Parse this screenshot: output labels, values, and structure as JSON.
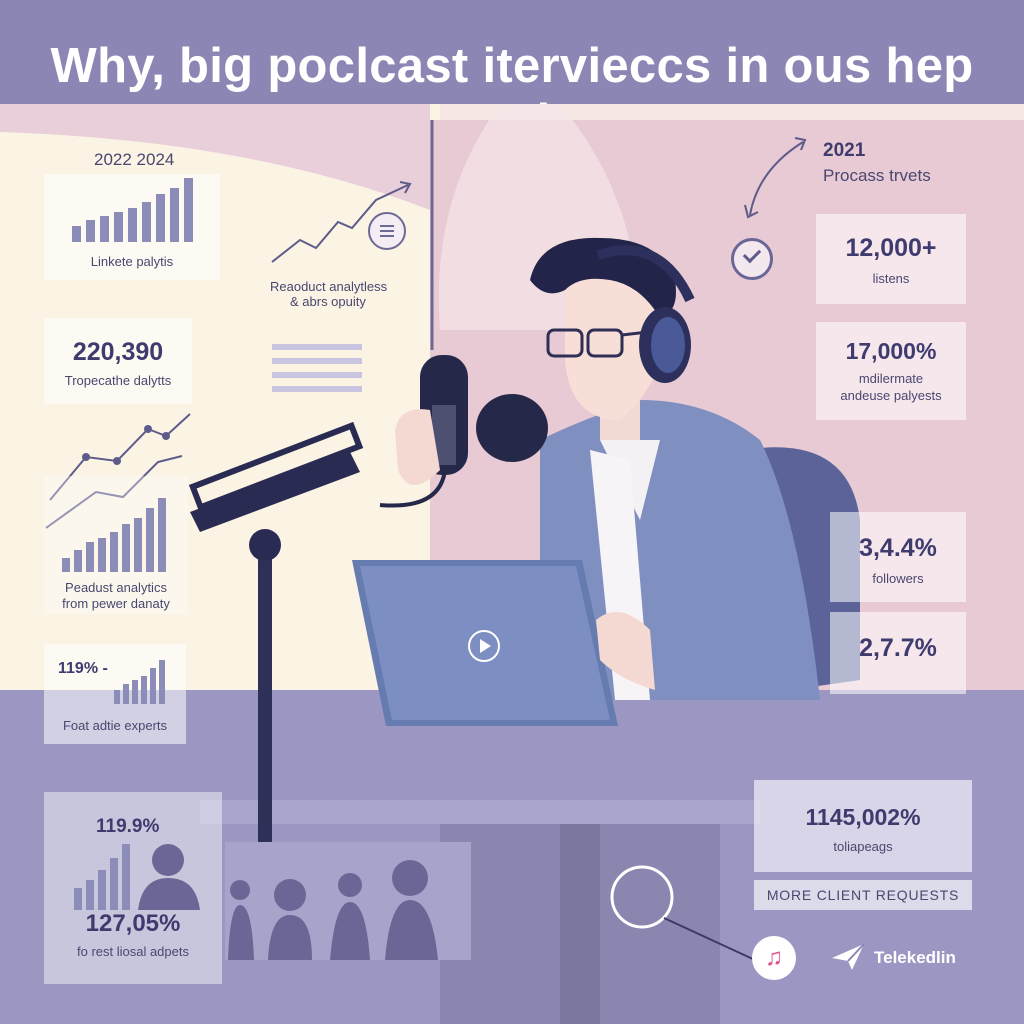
{
  "header": {
    "title": "Why, big poclcast itervieccs in ous hep tool."
  },
  "left_panel": {
    "years": "2022 2024",
    "chart_card_1_label": "Linkete palytis",
    "stat_1_value": "220,390",
    "stat_1_label": "Tropecathe dalytts",
    "analytics_line_1": "Reaoduct analytless",
    "analytics_line_2": "& abrs opuity",
    "chart_card_2_label_1": "Peadust analytics",
    "chart_card_2_label_2": "from pewer danaty",
    "small_stat_value": "119% -",
    "small_stat_label": "Foat adtie experts",
    "bottom_stat_1_value": "119.9%",
    "bottom_stat_2_value": "127,05%",
    "bottom_stat_2_label": "fo rest liosal adpets"
  },
  "right_panel": {
    "year": "2021",
    "subtitle": "Procass trvets",
    "stats": [
      {
        "value": "12,000+",
        "label": "listens"
      },
      {
        "value": "17,000%",
        "label_1": "mdilermate",
        "label_2": "andeuse palyests"
      },
      {
        "value": "3,4.4%",
        "label": "followers"
      },
      {
        "value": "2,7.7%"
      }
    ],
    "bottom_stat_value": "1145,002%",
    "bottom_stat_label": "toliapeags",
    "cta_label": "MORE CLIENT REQUESTS",
    "brand_name": "Telekedlin"
  },
  "colors": {
    "accent": "#3f3b6e",
    "background": "#8b86b3",
    "cream": "#fbf3e4",
    "pink": "#e6c8d2"
  },
  "icons": [
    "checkmark-circle-icon",
    "menu-lines-icon",
    "play-icon",
    "music-note-icon",
    "paper-plane-icon"
  ]
}
